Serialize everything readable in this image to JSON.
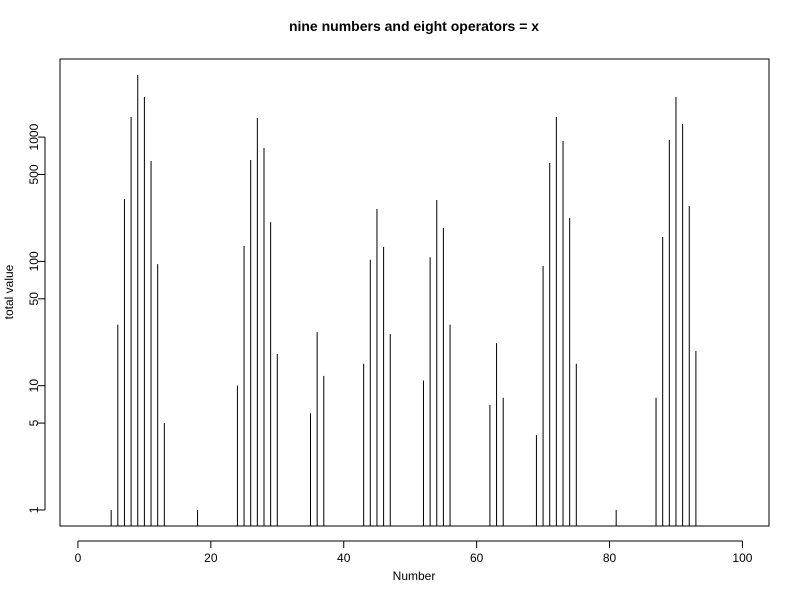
{
  "chart_data": {
    "type": "needle",
    "title": "nine numbers and eight operators = x",
    "x_label": "Number",
    "y_label": "total value",
    "log_y": true,
    "color": "#000000",
    "x": [
      5,
      6,
      7,
      8,
      9,
      10,
      11,
      12,
      13,
      18,
      24,
      25,
      26,
      27,
      28,
      29,
      30,
      35,
      36,
      37,
      43,
      44,
      45,
      46,
      47,
      52,
      53,
      54,
      55,
      56,
      62,
      63,
      64,
      69,
      70,
      71,
      72,
      73,
      74,
      75,
      81,
      87,
      88,
      89,
      90,
      91,
      92,
      93
    ],
    "values": [
      1,
      31,
      318,
      1452,
      3160,
      2100,
      642,
      95,
      5,
      1,
      10,
      133,
      655,
      1425,
      817,
      207,
      18,
      6,
      27,
      12,
      15,
      103,
      264,
      131,
      26,
      11,
      108,
      312,
      186,
      31,
      7,
      22,
      8,
      4,
      92,
      619,
      1452,
      931,
      223,
      15,
      1,
      8,
      157,
      948,
      2100,
      1275,
      279,
      19
    ],
    "xlim": [
      -2.7,
      104
    ],
    "ylim": [
      0.743,
      4250
    ],
    "xticks": [
      0,
      20,
      40,
      60,
      80,
      100
    ],
    "yticks": [
      1,
      5,
      10,
      50,
      100,
      500,
      1000
    ]
  }
}
